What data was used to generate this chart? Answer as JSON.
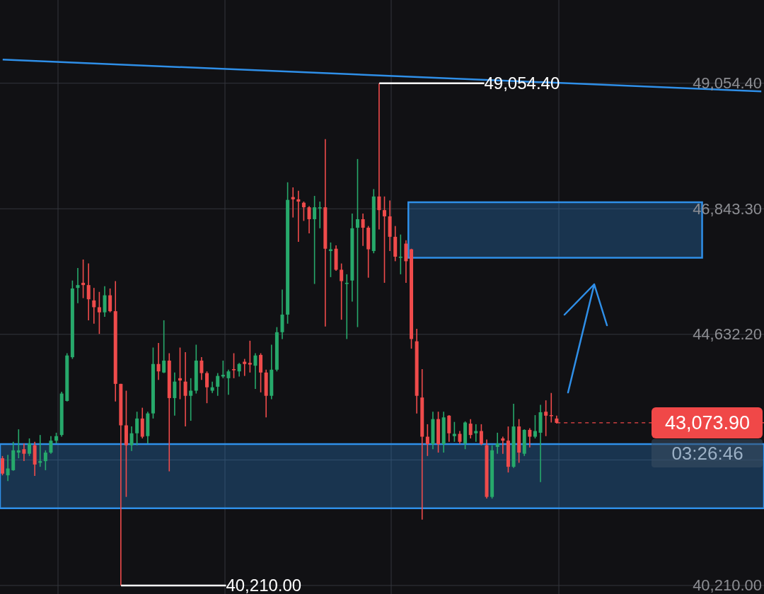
{
  "chart_data": {
    "type": "candlestick",
    "categories": [
      null,
      null,
      null,
      null,
      null,
      null,
      null,
      null,
      null,
      null,
      null,
      null,
      null,
      null,
      null,
      null,
      null,
      null,
      null,
      null,
      null,
      null,
      null,
      null,
      null,
      null,
      null,
      null,
      null,
      null,
      null,
      null,
      null,
      null,
      null,
      null,
      null,
      null,
      null,
      null,
      null,
      null,
      null,
      null,
      null,
      null,
      null,
      null,
      null,
      null,
      null,
      null,
      null,
      null,
      null,
      null,
      null,
      null,
      null,
      null,
      null,
      null,
      null,
      null,
      null,
      null,
      null,
      null,
      null,
      null,
      null,
      null,
      null,
      null,
      null,
      null,
      null,
      null,
      null,
      null,
      null,
      null,
      null,
      null,
      null,
      null,
      null,
      null,
      null,
      null,
      null,
      null,
      null,
      null,
      null,
      null,
      null,
      null,
      null,
      null,
      null,
      null,
      null,
      null,
      null,
      null,
      null,
      null,
      null,
      null,
      null,
      null,
      null,
      null,
      null,
      null,
      null,
      null,
      null,
      null,
      null,
      null,
      null,
      null,
      null,
      null,
      null,
      null,
      null,
      null,
      null,
      null,
      null,
      null,
      null,
      null,
      null,
      null,
      null,
      null,
      null,
      null
    ],
    "ohlc": [
      [
        42450,
        42490,
        42150,
        42180
      ],
      [
        42150,
        42510,
        42050,
        42270
      ],
      [
        42240,
        42740,
        42230,
        42590
      ],
      [
        42550,
        42960,
        42450,
        42590
      ],
      [
        42610,
        42710,
        42400,
        42530
      ],
      [
        42530,
        42800,
        42490,
        42710
      ],
      [
        42680,
        42740,
        42140,
        42340
      ],
      [
        42370,
        42860,
        42300,
        42400
      ],
      [
        42400,
        42590,
        42240,
        42550
      ],
      [
        42550,
        42840,
        42530,
        42760
      ],
      [
        42760,
        42900,
        42710,
        42840
      ],
      [
        42860,
        43620,
        42830,
        43590
      ],
      [
        43460,
        44300,
        43450,
        44260
      ],
      [
        44230,
        45580,
        44200,
        45440
      ],
      [
        45450,
        45800,
        45180,
        45500
      ],
      [
        45540,
        45950,
        45270,
        45500
      ],
      [
        45500,
        45880,
        44880,
        45250
      ],
      [
        45230,
        45450,
        44820,
        45110
      ],
      [
        45110,
        45380,
        44640,
        45020
      ],
      [
        45020,
        45480,
        44940,
        45320
      ],
      [
        45320,
        45440,
        45020,
        45040
      ],
      [
        45040,
        45570,
        43450,
        43760
      ],
      [
        43760,
        43760,
        40210,
        43030
      ],
      [
        43030,
        43640,
        41770,
        42680
      ],
      [
        42680,
        43010,
        42580,
        42890
      ],
      [
        42890,
        43270,
        42680,
        43150
      ],
      [
        43150,
        43340,
        42800,
        42830
      ],
      [
        42840,
        43270,
        42710,
        43240
      ],
      [
        43240,
        44400,
        43150,
        44110
      ],
      [
        44110,
        44480,
        43830,
        43980
      ],
      [
        43960,
        44880,
        43950,
        44170
      ],
      [
        44170,
        44300,
        42220,
        43510
      ],
      [
        43510,
        43960,
        43200,
        43800
      ],
      [
        43860,
        44400,
        43490,
        43820
      ],
      [
        43800,
        44320,
        43010,
        43550
      ],
      [
        43550,
        43860,
        43110,
        43640
      ],
      [
        43640,
        44450,
        43590,
        44170
      ],
      [
        44170,
        44230,
        43830,
        43950
      ],
      [
        43950,
        43980,
        43420,
        43700
      ],
      [
        43640,
        43800,
        43600,
        43700
      ],
      [
        43710,
        43950,
        43550,
        43900
      ],
      [
        43890,
        44170,
        43860,
        43920
      ],
      [
        43860,
        44010,
        43570,
        43980
      ],
      [
        44020,
        44300,
        43860,
        44000
      ],
      [
        43980,
        44130,
        43890,
        44110
      ],
      [
        44150,
        44200,
        43900,
        44110
      ],
      [
        44130,
        44520,
        43960,
        44100
      ],
      [
        44080,
        44300,
        43670,
        44260
      ],
      [
        44270,
        44300,
        43610,
        43960
      ],
      [
        43960,
        44010,
        43170,
        43550
      ],
      [
        43550,
        44450,
        43490,
        44010
      ],
      [
        44010,
        44760,
        43980,
        44670
      ],
      [
        44670,
        45420,
        44550,
        44980
      ],
      [
        44980,
        47310,
        44820,
        47000
      ],
      [
        47050,
        47220,
        46690,
        47010
      ],
      [
        47010,
        47160,
        46260,
        46970
      ],
      [
        46950,
        46970,
        46630,
        46870
      ],
      [
        46870,
        46890,
        46410,
        46660
      ],
      [
        46660,
        47070,
        45520,
        46870
      ],
      [
        46850,
        46970,
        46500,
        46870
      ],
      [
        46870,
        48070,
        44770,
        46140
      ],
      [
        46100,
        46250,
        45640,
        46130
      ],
      [
        46140,
        46200,
        45750,
        45770
      ],
      [
        45770,
        45880,
        44890,
        45570
      ],
      [
        45520,
        45690,
        44550,
        45540
      ],
      [
        45580,
        46760,
        45210,
        46500
      ],
      [
        46510,
        47720,
        44760,
        46660
      ],
      [
        46660,
        46760,
        46190,
        46510
      ],
      [
        46510,
        46540,
        45630,
        46130
      ],
      [
        46100,
        47190,
        46060,
        47060
      ],
      [
        47060,
        49054.4,
        46480,
        46820
      ],
      [
        46820,
        47060,
        45540,
        46710
      ],
      [
        46710,
        46990,
        46100,
        46350
      ],
      [
        46350,
        46540,
        45920,
        46000
      ],
      [
        45980,
        46390,
        45690,
        46000
      ],
      [
        46230,
        46290,
        45540,
        45920
      ],
      [
        46130,
        46140,
        44380,
        44550
      ],
      [
        44510,
        44730,
        43240,
        43550
      ],
      [
        43520,
        44020,
        41370,
        42830
      ],
      [
        42830,
        43050,
        42490,
        42700
      ],
      [
        42700,
        43270,
        42610,
        43140
      ],
      [
        43140,
        43270,
        42550,
        42700
      ],
      [
        42700,
        43270,
        42550,
        43170
      ],
      [
        43200,
        43210,
        42740,
        42890
      ],
      [
        42840,
        43090,
        42740,
        42880
      ],
      [
        42880,
        42930,
        42700,
        42740
      ],
      [
        42710,
        43100,
        42610,
        43080
      ],
      [
        43060,
        43140,
        42800,
        42860
      ],
      [
        42890,
        43050,
        42740,
        42930
      ],
      [
        42930,
        43050,
        42680,
        42700
      ],
      [
        42680,
        42780,
        41740,
        41770
      ],
      [
        41770,
        42680,
        41740,
        42590
      ],
      [
        42650,
        42900,
        42530,
        42710
      ],
      [
        42800,
        42830,
        42530,
        42760
      ],
      [
        42760,
        43010,
        42200,
        42300
      ],
      [
        42300,
        43410,
        42280,
        43010
      ],
      [
        43010,
        43140,
        42370,
        42550
      ],
      [
        42530,
        42960,
        42490,
        42950
      ],
      [
        42950,
        42980,
        42640,
        42830
      ],
      [
        42830,
        43210,
        42800,
        42930
      ],
      [
        42900,
        43390,
        42030,
        43260
      ],
      [
        43270,
        43470,
        42840,
        43200
      ],
      [
        43210,
        43600,
        43080,
        43200
      ],
      [
        43150,
        43200,
        43060,
        43073.9
      ],
      null,
      null,
      null,
      null,
      null,
      null,
      null,
      null,
      null,
      null,
      null,
      null,
      null,
      null,
      null,
      null,
      null,
      null,
      null,
      null,
      null,
      null,
      null,
      null,
      null,
      null,
      null,
      null,
      null,
      null,
      null,
      null,
      null,
      null,
      null,
      null,
      null,
      null
    ],
    "colors": [
      "#ef4b4b",
      "#27a96b",
      "#27a96b",
      "#27a96b",
      "#ef4b4b",
      "#27a96b",
      "#ef4b4b",
      "#27a96b",
      "#27a96b",
      "#27a96b",
      "#27a96b",
      "#27a96b",
      "#27a96b",
      "#27a96b",
      "#27a96b",
      "#ef4b4b",
      "#ef4b4b",
      "#ef4b4b",
      "#ef4b4b",
      "#27a96b",
      "#ef4b4b",
      "#ef4b4b",
      "#ef4b4b",
      "#ef4b4b",
      "#27a96b",
      "#27a96b",
      "#ef4b4b",
      "#27a96b",
      "#27a96b",
      "#ef4b4b",
      "#27a96b",
      "#ef4b4b",
      "#27a96b",
      "#ef4b4b",
      "#ef4b4b",
      "#27a96b",
      "#27a96b",
      "#ef4b4b",
      "#ef4b4b",
      "#27a96b",
      "#27a96b",
      "#27a96b",
      "#27a96b",
      "#ef4b4b",
      "#27a96b",
      "#ef4b4b",
      "#ef4b4b",
      "#27a96b",
      "#ef4b4b",
      "#ef4b4b",
      "#27a96b",
      "#27a96b",
      "#27a96b",
      "#27a96b",
      "#ef4b4b",
      "#ef4b4b",
      "#ef4b4b",
      "#ef4b4b",
      "#27a96b",
      "#27a96b",
      "#ef4b4b",
      "#27a96b",
      "#ef4b4b",
      "#ef4b4b",
      "#27a96b",
      "#27a96b",
      "#27a96b",
      "#ef4b4b",
      "#ef4b4b",
      "#27a96b",
      "#ef4b4b",
      "#ef4b4b",
      "#ef4b4b",
      "#ef4b4b",
      "#27a96b",
      "#ef4b4b",
      "#ef4b4b",
      "#ef4b4b",
      "#ef4b4b",
      "#ef4b4b",
      "#27a96b",
      "#ef4b4b",
      "#27a96b",
      "#ef4b4b",
      "#27a96b",
      "#ef4b4b",
      "#27a96b",
      "#ef4b4b",
      "#27a96b",
      "#ef4b4b",
      "#ef4b4b",
      "#27a96b",
      "#27a96b",
      "#ef4b4b",
      "#ef4b4b",
      "#27a96b",
      "#ef4b4b",
      "#27a96b",
      "#ef4b4b",
      "#27a96b",
      "#27a96b",
      "#ef4b4b",
      "#ef4b4b",
      "#ef4b4b",
      null,
      null,
      null,
      null,
      null,
      null,
      null,
      null,
      null,
      null,
      null,
      null,
      null,
      null,
      null,
      null,
      null,
      null,
      null,
      null,
      null,
      null,
      null,
      null,
      null,
      null,
      null,
      null,
      null,
      null,
      null,
      null,
      null,
      null,
      null,
      null,
      null,
      null
    ],
    "series": [
      {
        "type": "line",
        "color": "#2f8fe8",
        "values": [
          49470,
          null,
          null,
          null,
          null,
          null,
          null,
          null,
          null,
          null,
          null,
          null,
          null,
          null,
          null,
          null,
          null,
          null,
          null,
          null,
          null,
          null,
          null,
          null,
          null,
          null,
          null,
          null,
          null,
          null,
          null,
          null,
          null,
          null,
          null,
          null,
          null,
          null,
          null,
          null,
          null,
          null,
          null,
          null,
          null,
          null,
          null,
          null,
          null,
          null,
          null,
          null,
          null,
          null,
          null,
          null,
          null,
          null,
          null,
          null,
          null,
          null,
          null,
          null,
          null,
          null,
          null,
          null,
          null,
          null,
          null,
          null,
          null,
          null,
          null,
          null,
          null,
          null,
          null,
          null,
          null,
          null,
          null,
          null,
          null,
          null,
          null,
          null,
          null,
          null,
          null,
          null,
          null,
          null,
          null,
          null,
          null,
          null,
          null,
          null,
          null,
          null,
          null,
          null,
          null,
          null,
          null,
          null,
          null,
          null,
          null,
          null,
          null,
          null,
          null,
          null,
          null,
          null,
          null,
          null,
          null,
          null,
          null,
          null,
          null,
          null,
          null,
          null,
          null,
          null,
          null,
          null,
          null,
          null,
          null,
          null,
          null,
          null,
          null,
          null,
          null,
          48910
        ]
      }
    ],
    "ylim": [
      40060,
      50520
    ],
    "yticks": [
      {
        "value": 40210,
        "label": "40,210.00"
      },
      {
        "value": 42421.1,
        "label": null
      },
      {
        "value": 44632.2,
        "label": "44,632.20"
      },
      {
        "value": 46843.3,
        "label": "46,843.30"
      },
      {
        "value": 49054.4,
        "label": "49,054.40"
      }
    ],
    "tick_labels": "y",
    "grid": true,
    "bands": [
      {
        "axis": "y",
        "from": 41570,
        "to": 42700,
        "color": "#2f8fe8"
      },
      {
        "axis": "y",
        "from": 45980,
        "to": 46960,
        "color": "#2f8fe8"
      }
    ],
    "ref_lines": [
      {
        "axis": "y",
        "value": 43073.9,
        "label": "43,073.90",
        "color": "#f04848",
        "line_style": "dashed"
      }
    ],
    "annotations": [
      "49,054.40",
      "40,210.00",
      "03:26:46"
    ]
  }
}
